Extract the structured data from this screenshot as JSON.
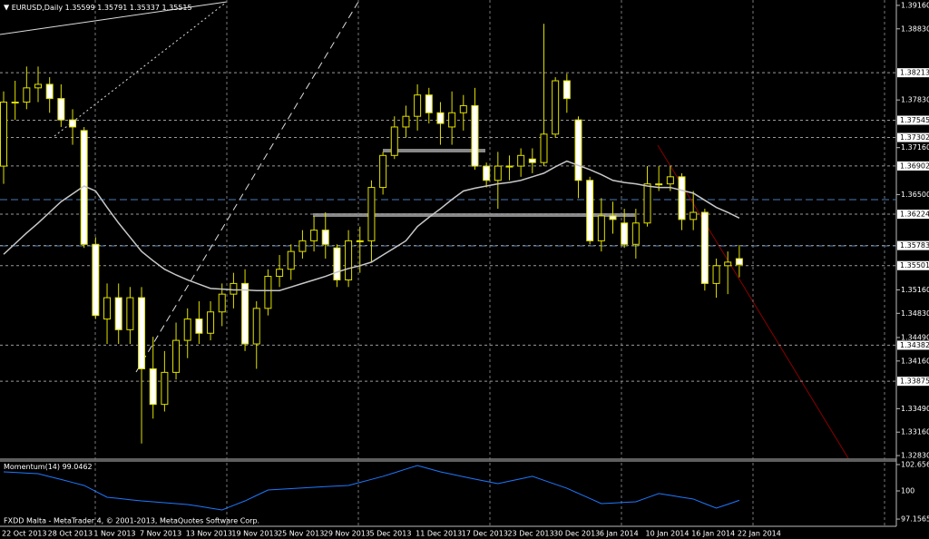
{
  "chart_data": [
    {
      "type": "candlestick",
      "title": "EURUSD,Daily",
      "categories": [
        "22 Oct 2013",
        null,
        null,
        null,
        "28 Oct 2013",
        null,
        null,
        null,
        "1 Nov 2013",
        null,
        null,
        null,
        "7 Nov 2013",
        null,
        null,
        null,
        "13 Nov 2013",
        null,
        null,
        null,
        "19 Nov 2013",
        null,
        null,
        null,
        "25 Nov 2013",
        null,
        null,
        null,
        "29 Nov 2013",
        null,
        null,
        null,
        "5 Dec 2013",
        null,
        null,
        null,
        "11 Dec 2013",
        null,
        null,
        null,
        "17 Dec 2013",
        null,
        null,
        null,
        "23 Dec 2013",
        null,
        null,
        null,
        "30 Dec 2013",
        null,
        null,
        null,
        "6 Jan 2014",
        null,
        null,
        null,
        "10 Jan 2014",
        null,
        null,
        null,
        "16 Jan 2014",
        null,
        null,
        null,
        "22 Jan 2014"
      ],
      "open": [
        1.369,
        1.378,
        1.378,
        1.38,
        1.3805,
        1.3785,
        1.3755,
        1.374,
        1.358,
        1.3475,
        1.3505,
        1.346,
        1.3505,
        1.3405,
        1.3355,
        1.34,
        1.3445,
        1.3475,
        1.3455,
        1.3485,
        1.351,
        1.3525,
        1.344,
        1.349,
        1.3535,
        1.3545,
        1.357,
        1.3585,
        1.36,
        1.3575,
        1.353,
        1.3585,
        1.3585,
        1.366,
        1.3705,
        1.3745,
        1.376,
        1.379,
        1.3765,
        1.3745,
        1.3765,
        1.3775,
        1.369,
        1.367,
        1.369,
        1.369,
        1.37,
        1.3695,
        1.3735,
        1.381,
        1.3755,
        1.367,
        1.3585,
        1.362,
        1.361,
        1.358,
        1.361,
        1.3665,
        1.3665,
        1.3675,
        1.3615,
        1.3625,
        1.3525,
        1.355,
        1.35599
      ],
      "high": [
        1.3795,
        1.381,
        1.383,
        1.383,
        1.3815,
        1.3805,
        1.377,
        1.3745,
        1.359,
        1.3525,
        1.3525,
        1.352,
        1.352,
        1.345,
        1.343,
        1.347,
        1.349,
        1.35,
        1.35,
        1.3525,
        1.354,
        1.3545,
        1.35,
        1.3545,
        1.3565,
        1.358,
        1.36,
        1.362,
        1.3625,
        1.358,
        1.36,
        1.3605,
        1.367,
        1.371,
        1.376,
        1.3775,
        1.3805,
        1.38,
        1.378,
        1.3795,
        1.379,
        1.38,
        1.3695,
        1.371,
        1.3705,
        1.3715,
        1.3715,
        1.389,
        1.3815,
        1.382,
        1.376,
        1.3675,
        1.3645,
        1.364,
        1.363,
        1.363,
        1.369,
        1.369,
        1.369,
        1.368,
        1.3655,
        1.363,
        1.356,
        1.357,
        1.35791
      ],
      "low": [
        1.3665,
        1.3755,
        1.377,
        1.378,
        1.3765,
        1.3745,
        1.372,
        1.3575,
        1.3475,
        1.344,
        1.344,
        1.344,
        1.33,
        1.3335,
        1.3345,
        1.339,
        1.342,
        1.344,
        1.3445,
        1.3465,
        1.349,
        1.343,
        1.3405,
        1.348,
        1.352,
        1.353,
        1.356,
        1.357,
        1.356,
        1.352,
        1.352,
        1.354,
        1.3555,
        1.365,
        1.37,
        1.373,
        1.374,
        1.375,
        1.372,
        1.372,
        1.374,
        1.3685,
        1.366,
        1.363,
        1.367,
        1.3675,
        1.368,
        1.369,
        1.373,
        1.3765,
        1.3645,
        1.358,
        1.357,
        1.3595,
        1.3575,
        1.356,
        1.3605,
        1.3655,
        1.3655,
        1.36,
        1.36,
        1.3515,
        1.3505,
        1.351,
        1.35337
      ],
      "close": [
        1.378,
        1.378,
        1.38,
        1.3805,
        1.3785,
        1.3755,
        1.3745,
        1.358,
        1.348,
        1.3505,
        1.346,
        1.3505,
        1.3405,
        1.3355,
        1.34,
        1.3445,
        1.3475,
        1.3455,
        1.3485,
        1.351,
        1.3525,
        1.344,
        1.349,
        1.3535,
        1.3545,
        1.357,
        1.3585,
        1.36,
        1.358,
        1.353,
        1.3585,
        1.3585,
        1.366,
        1.3705,
        1.3745,
        1.376,
        1.379,
        1.3765,
        1.375,
        1.3765,
        1.3775,
        1.369,
        1.367,
        1.369,
        1.369,
        1.3705,
        1.3695,
        1.3735,
        1.381,
        1.3785,
        1.367,
        1.3585,
        1.362,
        1.3615,
        1.358,
        1.361,
        1.3665,
        1.3665,
        1.3675,
        1.3615,
        1.3625,
        1.3525,
        1.355,
        1.3555,
        1.35515
      ],
      "ma": [
        1.3566,
        1.3581,
        1.3596,
        1.361,
        1.3625,
        1.364,
        1.3651,
        1.3662,
        1.3655,
        1.3632,
        1.361,
        1.359,
        1.357,
        1.3557,
        1.3545,
        1.3537,
        1.353,
        1.3524,
        1.3518,
        1.3517,
        1.3516,
        1.3516,
        1.3515,
        1.3515,
        1.3515,
        1.352,
        1.3525,
        1.353,
        1.3535,
        1.3541,
        1.3546,
        1.355,
        1.3555,
        1.3565,
        1.3575,
        1.3585,
        1.3605,
        1.3618,
        1.363,
        1.3643,
        1.3655,
        1.3659,
        1.3662,
        1.3665,
        1.3667,
        1.367,
        1.3675,
        1.368,
        1.3689,
        1.3697,
        1.3691,
        1.3685,
        1.3678,
        1.367,
        1.3667,
        1.3665,
        1.3662,
        1.366,
        1.366,
        1.3656,
        1.3652,
        1.3642,
        1.3632,
        1.3625,
        1.3617
      ],
      "ma_color": "#c8c8c8",
      "candle_color": "#e0e000",
      "bear_fill": "#ffffff",
      "bull_fill": "#000000",
      "ylim": [
        1.3278,
        1.3921
      ],
      "yticks": [
        {
          "value": 1.3916,
          "label": "1.39160"
        },
        {
          "value": 1.3883,
          "label": "1.38830"
        },
        {
          "value": 1.3783,
          "label": "1.37830"
        },
        {
          "value": 1.3716,
          "label": "1.37160"
        },
        {
          "value": 1.365,
          "label": "1.36500"
        },
        {
          "value": 1.3516,
          "label": "1.35160"
        },
        {
          "value": 1.3483,
          "label": "1.34830"
        },
        {
          "value": 1.3449,
          "label": "1.34490"
        },
        {
          "value": 1.3416,
          "label": "1.34160"
        },
        {
          "value": 1.3349,
          "label": "1.33490"
        },
        {
          "value": 1.3316,
          "label": "1.33160"
        },
        {
          "value": 1.3283,
          "label": "1.32830"
        }
      ],
      "price_levels": [
        {
          "value": 1.38213,
          "label": "1.38213"
        },
        {
          "value": 1.37545,
          "label": "1.37545"
        },
        {
          "value": 1.37302,
          "label": "1.37302"
        },
        {
          "value": 1.36902,
          "label": "1.36902"
        },
        {
          "value": 1.36224,
          "label": "1.36224"
        },
        {
          "value": 1.35783,
          "label": "1.35783"
        },
        {
          "value": 1.35501,
          "label": "1.35501"
        },
        {
          "value": 1.34382,
          "label": "1.34382"
        },
        {
          "value": 1.33875,
          "label": "1.33875"
        }
      ]
    },
    {
      "type": "line",
      "title": "Momentum(14)",
      "values": [
        101.92,
        101.86,
        101.8,
        101.74,
        101.44,
        101.15,
        100.85,
        100.55,
        99.96,
        99.36,
        99.24,
        99.11,
        98.99,
        98.9,
        98.81,
        98.72,
        98.63,
        98.45,
        98.26,
        98.08,
        98.54,
        98.99,
        99.54,
        100.09,
        100.16,
        100.23,
        100.3,
        100.37,
        100.43,
        100.49,
        100.55,
        100.86,
        101.16,
        101.47,
        101.83,
        102.2,
        102.56,
        102.24,
        101.92,
        101.68,
        101.43,
        101.19,
        100.96,
        100.73,
        100.98,
        101.22,
        101.47,
        101.07,
        100.67,
        100.27,
        99.75,
        99.24,
        98.72,
        98.78,
        98.84,
        98.9,
        99.32,
        99.73,
        99.55,
        99.36,
        99.18,
        98.72,
        98.26,
        98.65,
        99.0462
      ],
      "color": "#1e78ff",
      "ylim": [
        96.43,
        103.11
      ],
      "yticks": [
        {
          "value": 102.6561,
          "label": "102.6561"
        },
        100,
        {
          "value": 97.1565,
          "label": "97.1565"
        }
      ]
    }
  ],
  "footer": "FXDD Malta - MetaTrader 4, © 2001-2013, MetaQuotes Software Corp."
}
